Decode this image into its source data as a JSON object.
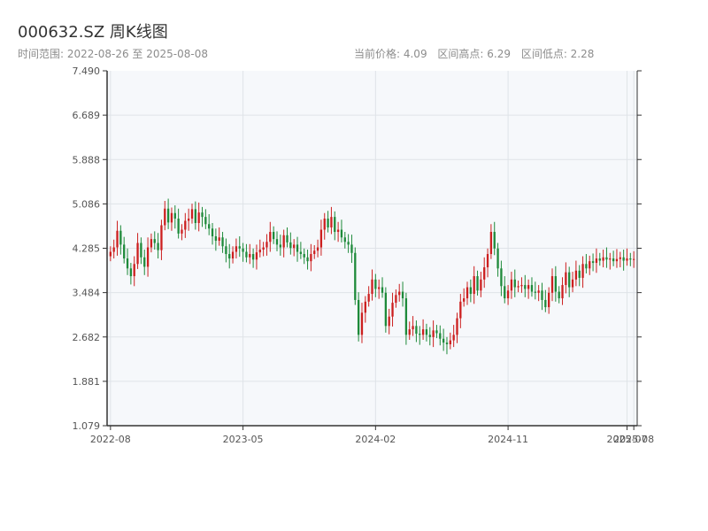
{
  "header": {
    "title": "000632.SZ 周K线图",
    "date_range": "时间范围: 2022-08-26 至 2025-08-08",
    "current_price": "当前价格: 4.09",
    "range_high": "区间高点: 6.29",
    "range_low": "区间低点: 2.28"
  },
  "colors": {
    "up": "#cc1f1f",
    "down": "#1e8a3a",
    "plot_bg": "#f6f8fb",
    "grid": "#dfe3e8",
    "axis": "#333333"
  },
  "chart_data": {
    "type": "candlestick",
    "title": "000632.SZ 周K线图",
    "ylim": [
      1.079,
      7.49
    ],
    "y_ticks": [
      "7.490",
      "6.689",
      "5.888",
      "5.086",
      "4.285",
      "3.484",
      "2.682",
      "1.881",
      "1.079"
    ],
    "x_ticks": [
      "2022-08",
      "2023-05",
      "2024-02",
      "2024-11",
      "2025-07",
      "2025-08"
    ],
    "x_tick_positions": [
      0,
      39,
      78,
      117,
      152,
      154
    ],
    "grid": true,
    "series_close": [
      4.22,
      4.3,
      4.6,
      4.35,
      4.1,
      3.92,
      3.78,
      4.0,
      4.38,
      4.12,
      3.95,
      4.3,
      4.45,
      4.38,
      4.25,
      4.7,
      5.0,
      4.75,
      4.92,
      4.82,
      4.55,
      4.62,
      4.78,
      4.82,
      4.99,
      4.74,
      4.93,
      4.85,
      4.72,
      4.64,
      4.5,
      4.42,
      4.48,
      4.32,
      4.18,
      4.1,
      4.22,
      4.32,
      4.28,
      4.22,
      4.12,
      4.18,
      4.08,
      4.21,
      4.26,
      4.3,
      4.4,
      4.58,
      4.45,
      4.35,
      4.3,
      4.52,
      4.39,
      4.29,
      4.35,
      4.22,
      4.18,
      4.12,
      4.05,
      4.18,
      4.24,
      4.3,
      4.62,
      4.82,
      4.66,
      4.85,
      4.58,
      4.62,
      4.48,
      4.4,
      4.35,
      4.2,
      3.35,
      2.72,
      3.12,
      3.32,
      3.46,
      3.72,
      3.55,
      3.58,
      3.48,
      2.88,
      3.05,
      3.3,
      3.44,
      3.5,
      3.38,
      2.72,
      2.82,
      2.88,
      2.74,
      2.72,
      2.82,
      2.72,
      2.68,
      2.8,
      2.75,
      2.65,
      2.58,
      2.55,
      2.62,
      2.72,
      3.02,
      3.32,
      3.38,
      3.58,
      3.46,
      3.78,
      3.52,
      3.72,
      3.94,
      4.18,
      4.58,
      4.28,
      3.92,
      3.6,
      3.38,
      3.52,
      3.72,
      3.58,
      3.6,
      3.62,
      3.55,
      3.62,
      3.5,
      3.48,
      3.52,
      3.35,
      3.22,
      3.48,
      3.78,
      3.5,
      3.38,
      3.62,
      3.85,
      3.58,
      3.72,
      3.88,
      3.75,
      4.0,
      3.92,
      4.05,
      4.02,
      4.1,
      4.06,
      4.12,
      4.08,
      4.1,
      4.05,
      4.09,
      4.12,
      4.06,
      4.1,
      4.08,
      4.09
    ]
  }
}
